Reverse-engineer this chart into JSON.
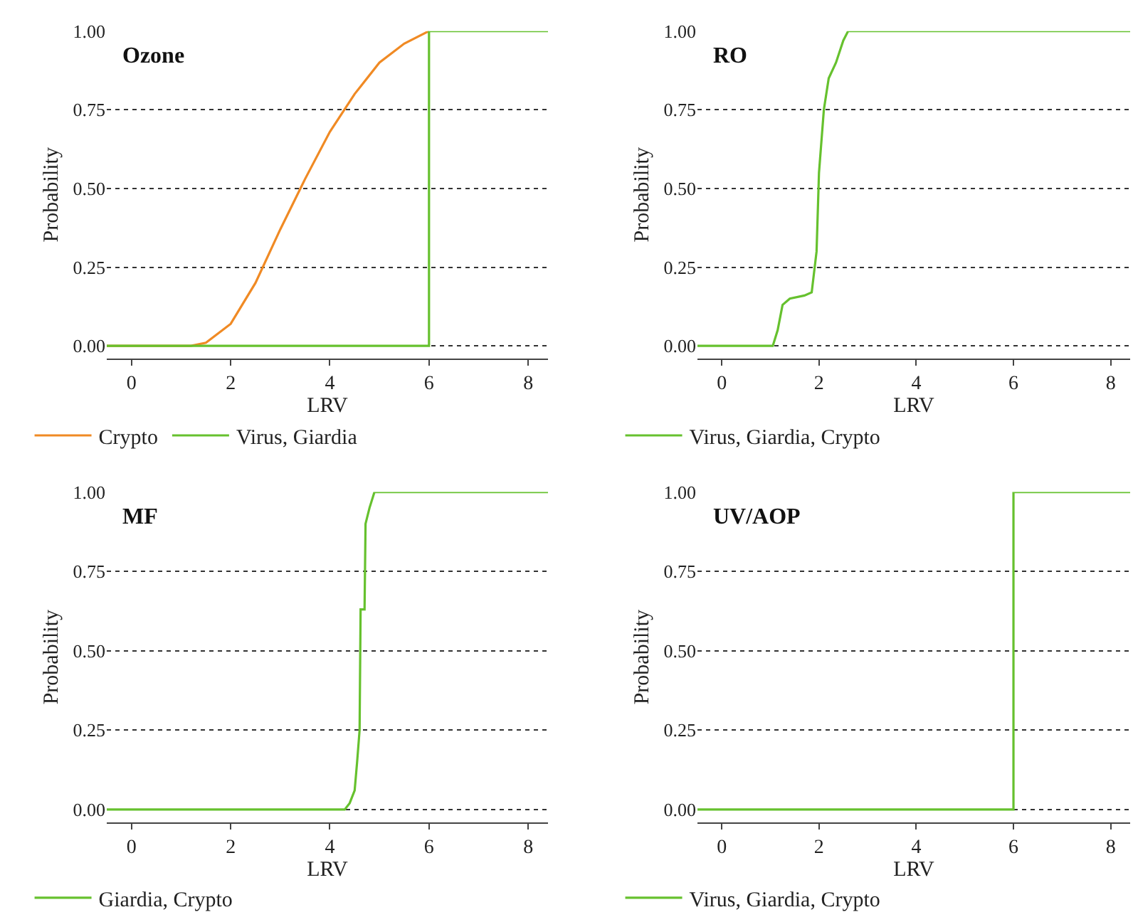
{
  "chart_data": [
    {
      "type": "line",
      "title": "Ozone",
      "xlabel": "LRV",
      "ylabel": "Probability",
      "xlim": [
        -0.5,
        8.4
      ],
      "xticks": [
        0,
        2,
        4,
        6,
        8
      ],
      "ylim": [
        -0.04,
        1
      ],
      "yticks": [
        {
          "value": 0,
          "label": "0.00"
        },
        {
          "value": 0.25,
          "label": "0.25"
        },
        {
          "value": 0.5,
          "label": "0.50"
        },
        {
          "value": 0.75,
          "label": "0.75"
        },
        {
          "value": 1,
          "label": "1.00"
        }
      ],
      "grid": "y",
      "legend": "bottom",
      "series": [
        {
          "name": "Crypto",
          "color": "#f08a24",
          "x": [
            -0.5,
            1.2,
            1.5,
            2,
            2.5,
            3,
            3.5,
            4,
            4.5,
            5,
            5.5,
            6
          ],
          "values": [
            0,
            0,
            0.01,
            0.07,
            0.2,
            0.37,
            0.53,
            0.68,
            0.8,
            0.9,
            0.96,
            1
          ]
        },
        {
          "name": "Virus, Giardia",
          "color": "#66c12e",
          "x": [
            -0.5,
            6,
            6,
            8.4
          ],
          "values": [
            0,
            0,
            1,
            1
          ]
        }
      ]
    },
    {
      "type": "line",
      "title": "RO",
      "xlabel": "LRV",
      "ylabel": "Probability",
      "xlim": [
        -0.5,
        8.4
      ],
      "xticks": [
        0,
        2,
        4,
        6,
        8
      ],
      "ylim": [
        -0.04,
        1
      ],
      "yticks": [
        {
          "value": 0,
          "label": "0.00"
        },
        {
          "value": 0.25,
          "label": "0.25"
        },
        {
          "value": 0.5,
          "label": "0.50"
        },
        {
          "value": 0.75,
          "label": "0.75"
        },
        {
          "value": 1,
          "label": "1.00"
        }
      ],
      "grid": "y",
      "legend": "bottom",
      "series": [
        {
          "name": "Virus, Giardia, Crypto",
          "color": "#66c12e",
          "x": [
            -0.5,
            1.05,
            1.15,
            1.25,
            1.4,
            1.7,
            1.85,
            1.95,
            2.0,
            2.1,
            2.2,
            2.35,
            2.5,
            2.6,
            8.4
          ],
          "values": [
            0,
            0,
            0.05,
            0.13,
            0.15,
            0.16,
            0.17,
            0.3,
            0.55,
            0.75,
            0.85,
            0.9,
            0.97,
            1,
            1
          ]
        }
      ]
    },
    {
      "type": "line",
      "title": "MF",
      "xlabel": "LRV",
      "ylabel": "Probability",
      "xlim": [
        -0.5,
        8.4
      ],
      "xticks": [
        0,
        2,
        4,
        6,
        8
      ],
      "ylim": [
        -0.04,
        1
      ],
      "yticks": [
        {
          "value": 0,
          "label": "0.00"
        },
        {
          "value": 0.25,
          "label": "0.25"
        },
        {
          "value": 0.5,
          "label": "0.50"
        },
        {
          "value": 0.75,
          "label": "0.75"
        },
        {
          "value": 1,
          "label": "1.00"
        }
      ],
      "grid": "y",
      "legend": "bottom",
      "series": [
        {
          "name": "Giardia, Crypto",
          "color": "#66c12e",
          "x": [
            -0.5,
            4.3,
            4.4,
            4.5,
            4.55,
            4.6,
            4.62,
            4.7,
            4.72,
            4.8,
            4.9,
            8.4
          ],
          "values": [
            0,
            0,
            0.02,
            0.06,
            0.15,
            0.25,
            0.63,
            0.63,
            0.9,
            0.95,
            1,
            1
          ]
        }
      ]
    },
    {
      "type": "line",
      "title": "UV/AOP",
      "xlabel": "LRV",
      "ylabel": "Probability",
      "xlim": [
        -0.5,
        8.4
      ],
      "xticks": [
        0,
        2,
        4,
        6,
        8
      ],
      "ylim": [
        -0.04,
        1
      ],
      "yticks": [
        {
          "value": 0,
          "label": "0.00"
        },
        {
          "value": 0.25,
          "label": "0.25"
        },
        {
          "value": 0.5,
          "label": "0.50"
        },
        {
          "value": 0.75,
          "label": "0.75"
        },
        {
          "value": 1,
          "label": "1.00"
        }
      ],
      "grid": "y",
      "legend": "bottom",
      "series": [
        {
          "name": "Virus, Giardia, Crypto",
          "color": "#66c12e",
          "x": [
            -0.5,
            6,
            6,
            8.4
          ],
          "values": [
            0,
            0,
            1,
            1
          ]
        }
      ]
    }
  ]
}
